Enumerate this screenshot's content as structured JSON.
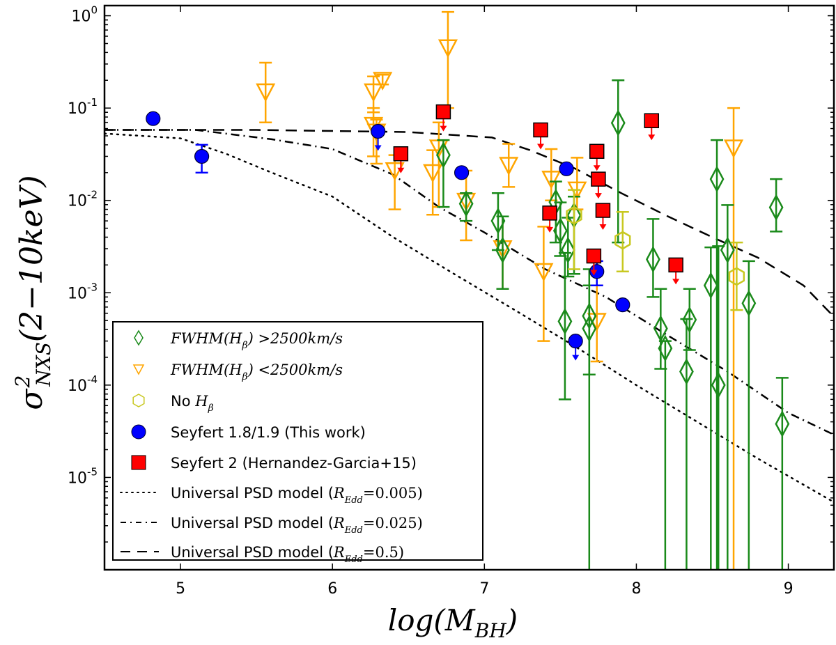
{
  "chart_data": {
    "type": "scatter",
    "title": "",
    "xlabel": "log(M_BH)",
    "ylabel": "σ²_NXS(2−10keV)",
    "xlabel_parts": {
      "main": "log(M",
      "sub": "BH",
      "tail": ")"
    },
    "ylabel_parts": {
      "main": "σ",
      "sup": "2",
      "sub": "NXS",
      "tail": "(2−10keV)"
    },
    "xlim": [
      4.5,
      9.3
    ],
    "ylim": [
      1e-06,
      1.3
    ],
    "yscale": "log",
    "grid": false,
    "xticks": [
      5,
      6,
      7,
      8,
      9
    ],
    "xtick_labels": [
      "5",
      "6",
      "7",
      "8",
      "9"
    ],
    "yticks": [
      1,
      0.1,
      0.01,
      0.001,
      0.0001,
      1e-05
    ],
    "ytick_labels": [
      {
        "base": "10",
        "exp": "0"
      },
      {
        "base": "10",
        "exp": "-1"
      },
      {
        "base": "10",
        "exp": "-2"
      },
      {
        "base": "10",
        "exp": "-3"
      },
      {
        "base": "10",
        "exp": "-4"
      },
      {
        "base": "10",
        "exp": "-5"
      }
    ],
    "legend_position": "lower-left",
    "legend": [
      {
        "key": "broad",
        "label_prefix": "FWHM(H",
        "label_sub": "β",
        "label_suffix": ") >2500km/s",
        "math": true
      },
      {
        "key": "narrow",
        "label_prefix": "FWHM(H",
        "label_sub": "β",
        "label_suffix": ") <2500km/s",
        "math": true
      },
      {
        "key": "nohb",
        "label_prefix": "No ",
        "label_math": "H",
        "label_sub": "β",
        "label_suffix": "",
        "math": false
      },
      {
        "key": "sy19",
        "label": "Seyfert 1.8/1.9 (This work)"
      },
      {
        "key": "sy2",
        "label": "Seyfert 2 (Hernandez-Garcia+15)"
      },
      {
        "key": "m005",
        "label": "Universal PSD model (",
        "label_math": "R",
        "label_sub": "Edd",
        "label_suffix": "=0.005)"
      },
      {
        "key": "m025",
        "label": "Universal PSD model (",
        "label_math": "R",
        "label_sub": "Edd",
        "label_suffix": "=0.025)"
      },
      {
        "key": "m05",
        "label": "Universal PSD model (",
        "label_math": "R",
        "label_sub": "Edd",
        "label_suffix": "=0.5)"
      }
    ],
    "colors": {
      "broad": "#1a8a1a",
      "narrow": "#ffa500",
      "nohb": "#c8c820",
      "sy19": "#0000ff",
      "sy2": "#ff0000",
      "model": "#000000"
    },
    "series": [
      {
        "name": "FWHM(Hβ) >2500km/s",
        "key": "broad",
        "marker": "diamond",
        "points": [
          {
            "x": 6.73,
            "y": 0.031,
            "lo": 0.0085,
            "hi": 0.045
          },
          {
            "x": 6.88,
            "y": 0.0092,
            "lo": 0.006,
            "hi": 0.012
          },
          {
            "x": 7.09,
            "y": 0.006,
            "lo": 0.0029,
            "hi": 0.012
          },
          {
            "x": 7.12,
            "y": 0.0029,
            "lo": 0.0011,
            "hi": 0.0067
          },
          {
            "x": 7.47,
            "y": 0.0096,
            "lo": 0.0035,
            "hi": 0.016
          },
          {
            "x": 7.5,
            "y": 0.0047,
            "lo": 0.0025,
            "hi": 0.0095
          },
          {
            "x": 7.53,
            "y": 0.00049,
            "lo": 7e-05,
            "hi": 0.0027
          },
          {
            "x": 7.55,
            "y": 0.0029,
            "lo": 0.0015,
            "hi": 0.0065
          },
          {
            "x": 7.59,
            "y": 0.0069,
            "lo": 0.0016,
            "hi": 0.011
          },
          {
            "x": 7.69,
            "y": 0.00056,
            "lo": 1e-06,
            "hi": 0.0018
          },
          {
            "x": 7.69,
            "y": 0.00041,
            "lo": 0.00013,
            "hi": 0.0012
          },
          {
            "x": 7.88,
            "y": 0.069,
            "lo": 0.0035,
            "hi": 0.2
          },
          {
            "x": 8.11,
            "y": 0.0023,
            "lo": 0.0009,
            "hi": 0.0063
          },
          {
            "x": 8.16,
            "y": 0.00041,
            "lo": 0.00015,
            "hi": 0.0011
          },
          {
            "x": 8.19,
            "y": 0.00025,
            "lo": 1e-06,
            "hi": 0.0003
          },
          {
            "x": 8.33,
            "y": 0.00014,
            "lo": 1e-06,
            "hi": 0.00052
          },
          {
            "x": 8.35,
            "y": 0.00051,
            "lo": 0.00024,
            "hi": 0.0011
          },
          {
            "x": 8.49,
            "y": 0.0012,
            "lo": 1e-06,
            "hi": 0.0031
          },
          {
            "x": 8.53,
            "y": 0.017,
            "lo": 1e-06,
            "hi": 0.045
          },
          {
            "x": 8.54,
            "y": 0.0001,
            "lo": 1e-06,
            "hi": 0.0032
          },
          {
            "x": 8.6,
            "y": 0.0029,
            "lo": 1e-06,
            "hi": 0.0089
          },
          {
            "x": 8.74,
            "y": 0.00077,
            "lo": 1e-06,
            "hi": 0.0022
          },
          {
            "x": 8.92,
            "y": 0.0084,
            "lo": 0.0046,
            "hi": 0.017
          },
          {
            "x": 8.96,
            "y": 3.8e-05,
            "lo": 1e-06,
            "hi": 0.00012
          }
        ]
      },
      {
        "name": "FWHM(Hβ) <2500km/s",
        "key": "narrow",
        "marker": "triangle_down",
        "points": [
          {
            "x": 5.56,
            "y": 0.15,
            "lo": 0.07,
            "hi": 0.31
          },
          {
            "x": 6.27,
            "y": 0.15,
            "lo": 0.09,
            "hi": 0.22
          },
          {
            "x": 6.33,
            "y": 0.2,
            "lo": 0.18,
            "hi": 0.23
          },
          {
            "x": 6.27,
            "y": 0.065,
            "lo": 0.03,
            "hi": 0.1
          },
          {
            "x": 6.29,
            "y": 0.055,
            "lo": 0.025,
            "hi": 0.075
          },
          {
            "x": 6.41,
            "y": 0.021,
            "lo": 0.008,
            "hi": 0.031
          },
          {
            "x": 6.66,
            "y": 0.02,
            "lo": 0.007,
            "hi": 0.035
          },
          {
            "x": 6.7,
            "y": 0.037,
            "lo": 0.0085,
            "hi": 0.07
          },
          {
            "x": 6.76,
            "y": 0.45,
            "lo": 0.1,
            "hi": 1.1
          },
          {
            "x": 6.88,
            "y": 0.0098,
            "lo": 0.0037,
            "hi": 0.021
          },
          {
            "x": 7.12,
            "y": 0.003,
            "lo": 0.0011,
            "hi": 0.0067
          },
          {
            "x": 7.16,
            "y": 0.024,
            "lo": 0.014,
            "hi": 0.041
          },
          {
            "x": 7.39,
            "y": 0.0017,
            "lo": 0.0003,
            "hi": 0.0052
          },
          {
            "x": 7.44,
            "y": 0.017,
            "lo": 0.01,
            "hi": 0.036
          },
          {
            "x": 7.61,
            "y": 0.013,
            "lo": 0.008,
            "hi": 0.029
          },
          {
            "x": 7.74,
            "y": 0.00049,
            "lo": 0.00018,
            "hi": 0.0012
          },
          {
            "x": 8.64,
            "y": 0.037,
            "lo": 1e-06,
            "hi": 0.1
          }
        ]
      },
      {
        "name": "No Hβ",
        "key": "nohb",
        "marker": "hexagon",
        "points": [
          {
            "x": 7.59,
            "y": 0.0069,
            "lo": 0.0018,
            "hi": 0.013
          },
          {
            "x": 7.91,
            "y": 0.0037,
            "lo": 0.0017,
            "hi": 0.0075
          },
          {
            "x": 8.66,
            "y": 0.0015,
            "lo": 0.00065,
            "hi": 0.0035
          }
        ]
      },
      {
        "name": "Seyfert 1.8/1.9 (This work)",
        "key": "sy19",
        "marker": "circle",
        "points": [
          {
            "x": 4.82,
            "y": 0.077
          },
          {
            "x": 5.14,
            "y": 0.03,
            "lo": 0.02,
            "hi": 0.04
          },
          {
            "x": 6.3,
            "y": 0.056,
            "upper_limit": true
          },
          {
            "x": 6.85,
            "y": 0.02
          },
          {
            "x": 7.54,
            "y": 0.022
          },
          {
            "x": 7.6,
            "y": 0.0003,
            "upper_limit": true
          },
          {
            "x": 7.74,
            "y": 0.0017,
            "lo": 0.0012,
            "hi": 0.0022
          },
          {
            "x": 7.91,
            "y": 0.00074
          }
        ]
      },
      {
        "name": "Seyfert 2 (Hernandez-Garcia+15)",
        "key": "sy2",
        "marker": "square",
        "points": [
          {
            "x": 6.45,
            "y": 0.032,
            "upper_limit": true
          },
          {
            "x": 6.73,
            "y": 0.091,
            "upper_limit": true
          },
          {
            "x": 7.37,
            "y": 0.058,
            "upper_limit": true
          },
          {
            "x": 7.43,
            "y": 0.0073,
            "upper_limit": true
          },
          {
            "x": 7.72,
            "y": 0.0025,
            "upper_limit": true
          },
          {
            "x": 7.74,
            "y": 0.034,
            "upper_limit": true
          },
          {
            "x": 7.75,
            "y": 0.017,
            "upper_limit": true
          },
          {
            "x": 7.78,
            "y": 0.0078,
            "upper_limit": true
          },
          {
            "x": 8.1,
            "y": 0.073,
            "upper_limit": true
          },
          {
            "x": 8.26,
            "y": 0.002,
            "upper_limit": true
          }
        ]
      }
    ],
    "models": [
      {
        "name": "Universal PSD model (R_Edd=0.005)",
        "key": "m005",
        "style": "dotted",
        "x": [
          4.5,
          5.0,
          5.3,
          5.6,
          6.0,
          6.4,
          6.8,
          7.2,
          7.6,
          8.0,
          8.4,
          8.8,
          9.3
        ],
        "y": [
          0.053,
          0.047,
          0.032,
          0.02,
          0.011,
          0.004,
          0.0016,
          0.00065,
          0.00026,
          0.0001,
          4e-05,
          1.6e-05,
          5.4e-06
        ]
      },
      {
        "name": "Universal PSD model (R_Edd=0.025)",
        "key": "m025",
        "style": "dashdot",
        "x": [
          4.5,
          5.1,
          5.6,
          6.0,
          6.4,
          6.7,
          7.0,
          7.4,
          7.8,
          8.2,
          8.6,
          9.0,
          9.3
        ],
        "y": [
          0.058,
          0.058,
          0.046,
          0.036,
          0.019,
          0.0085,
          0.0045,
          0.0018,
          0.0009,
          0.00035,
          0.00014,
          5e-05,
          2.9e-05
        ]
      },
      {
        "name": "Universal PSD model (R_Edd=0.5)",
        "key": "m05",
        "style": "dashed",
        "x": [
          4.5,
          5.5,
          6.5,
          7.05,
          7.3,
          7.6,
          7.9,
          8.2,
          8.5,
          8.8,
          9.1,
          9.3
        ],
        "y": [
          0.058,
          0.058,
          0.055,
          0.048,
          0.035,
          0.022,
          0.012,
          0.0068,
          0.004,
          0.0024,
          0.0012,
          0.00055
        ]
      }
    ]
  }
}
